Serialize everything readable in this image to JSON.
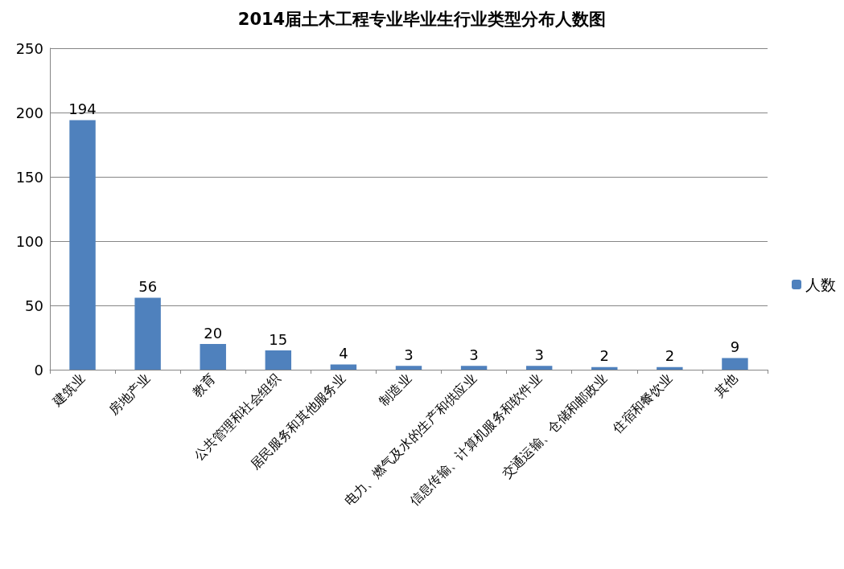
{
  "chart_data": {
    "type": "bar",
    "title": "2014届土木工程专业毕业生行业类型分布人数图",
    "categories": [
      "建筑业",
      "房地产业",
      "教育",
      "公共管理和社会组织",
      "居民服务和其他服务业",
      "制造业",
      "电力、燃气及水的生产和供应业",
      "信息传输、计算机服务和软件业",
      "交通运输、仓储和邮政业",
      "住宿和餐饮业",
      "其他"
    ],
    "series": [
      {
        "name": "人数",
        "color": "#4f81bd",
        "values": [
          194,
          56,
          20,
          15,
          4,
          3,
          3,
          3,
          2,
          2,
          9
        ]
      }
    ],
    "ylim": [
      0,
      250
    ],
    "yticks": [
      0,
      50,
      100,
      150,
      200,
      250
    ],
    "grid": "y",
    "legend": "right",
    "data_labels": true
  }
}
